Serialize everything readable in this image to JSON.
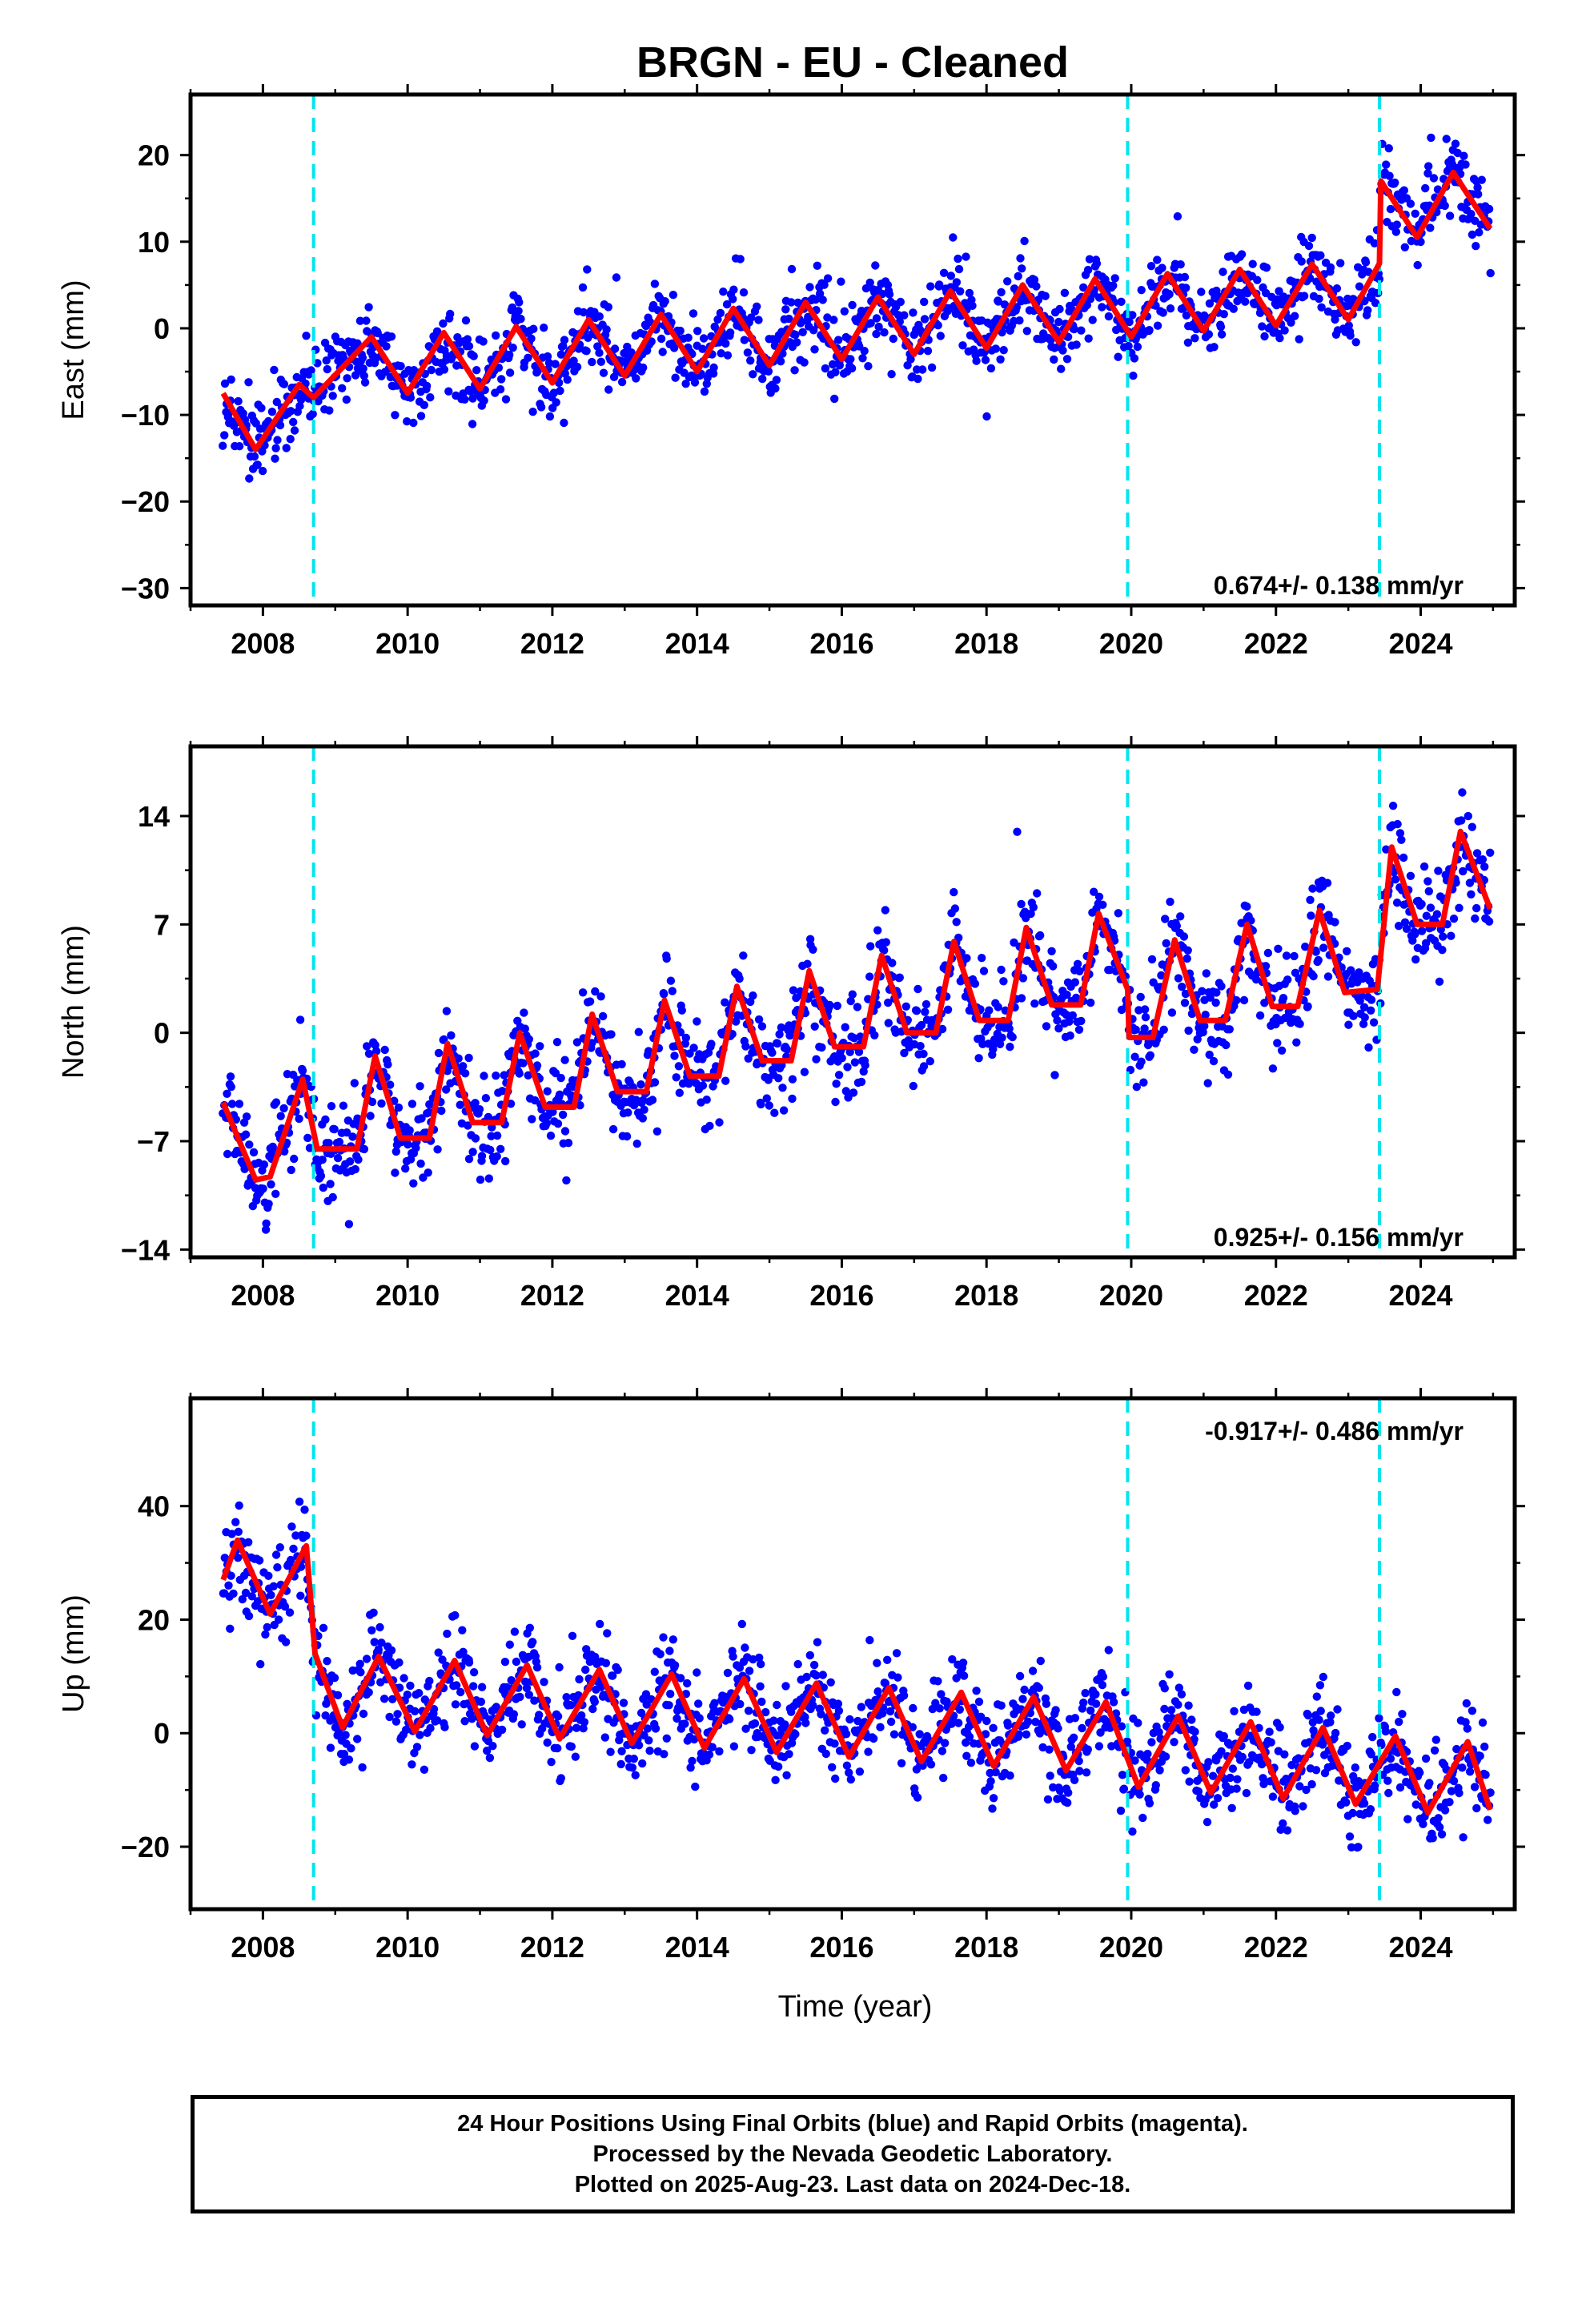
{
  "chart_data": {
    "type": "scatter",
    "title": "BRGN  - EU - Cleaned",
    "xlabel": "Time (year)",
    "xlim": [
      2007.0,
      2025.3
    ],
    "x_ticks": [
      2008,
      2010,
      2012,
      2014,
      2016,
      2018,
      2020,
      2022,
      2024
    ],
    "x_tick_labels": [
      "2008",
      "2010",
      "2012",
      "2014",
      "2016",
      "2018",
      "2020",
      "2022",
      "2024"
    ],
    "data_span": [
      2007.45,
      2024.96
    ],
    "step_epochs": [
      2008.7,
      2019.95,
      2023.43
    ],
    "colors": {
      "points": "#0000ff",
      "model": "#ff0000",
      "steps": "#00e5ee",
      "frame": "#000000"
    },
    "series": [
      {
        "name": "Final Orbits",
        "marker_color": "#0000ff"
      },
      {
        "name": "Rapid Orbits",
        "marker_color": "#ff00ff"
      }
    ],
    "panels": [
      {
        "component": "east",
        "ylabel": "East (mm)",
        "ylim": [
          -32,
          27
        ],
        "y_ticks": [
          -30,
          -20,
          -10,
          0,
          10,
          20
        ],
        "y_tick_labels": [
          "−30",
          "−20",
          "−10",
          "0",
          "10",
          "20"
        ],
        "rate": "0.674+/- 0.138 mm/yr",
        "rate_position": "bottom-right",
        "trend_rate_mm_yr": 0.674,
        "model": [
          {
            "t": 2007.45,
            "y": -7.5
          },
          {
            "t": 2007.9,
            "y": -14
          },
          {
            "t": 2008.5,
            "y": -6.5
          },
          {
            "t": 2008.7,
            "y": -8
          },
          {
            "t": 2009.5,
            "y": -1
          },
          {
            "t": 2010.0,
            "y": -7.5
          },
          {
            "t": 2010.5,
            "y": -0.5
          },
          {
            "t": 2011.0,
            "y": -7
          },
          {
            "t": 2011.5,
            "y": 0.2
          },
          {
            "t": 2012.0,
            "y": -6.3
          },
          {
            "t": 2012.5,
            "y": 1
          },
          {
            "t": 2013.0,
            "y": -5.5
          },
          {
            "t": 2013.5,
            "y": 1.6
          },
          {
            "t": 2014.0,
            "y": -5
          },
          {
            "t": 2014.5,
            "y": 2.3
          },
          {
            "t": 2015.0,
            "y": -4.3
          },
          {
            "t": 2015.5,
            "y": 3
          },
          {
            "t": 2016.0,
            "y": -3.6
          },
          {
            "t": 2016.5,
            "y": 3.6
          },
          {
            "t": 2017.0,
            "y": -3
          },
          {
            "t": 2017.5,
            "y": 4.3
          },
          {
            "t": 2018.0,
            "y": -2.3
          },
          {
            "t": 2018.5,
            "y": 5
          },
          {
            "t": 2019.0,
            "y": -1.6
          },
          {
            "t": 2019.5,
            "y": 5.7
          },
          {
            "t": 2020.0,
            "y": -1
          },
          {
            "t": 2020.5,
            "y": 6.3
          },
          {
            "t": 2021.0,
            "y": -0.3
          },
          {
            "t": 2021.5,
            "y": 6.8
          },
          {
            "t": 2022.0,
            "y": 0.3
          },
          {
            "t": 2022.5,
            "y": 7.4
          },
          {
            "t": 2023.0,
            "y": 1
          },
          {
            "t": 2023.43,
            "y": 7.5
          },
          {
            "t": 2023.45,
            "y": 17
          },
          {
            "t": 2023.95,
            "y": 10.5
          },
          {
            "t": 2024.45,
            "y": 18
          },
          {
            "t": 2024.96,
            "y": 11.5
          }
        ]
      },
      {
        "component": "north",
        "ylabel": "North (mm)",
        "ylim": [
          -14.5,
          18.5
        ],
        "y_ticks": [
          -14,
          -7,
          0,
          7,
          14
        ],
        "y_tick_labels": [
          "−14",
          "−7",
          "0",
          "7",
          "14"
        ],
        "rate": "0.925+/- 0.156 mm/yr",
        "rate_position": "bottom-right",
        "trend_rate_mm_yr": 0.925,
        "model": [
          {
            "t": 2007.45,
            "y": -4.5
          },
          {
            "t": 2007.9,
            "y": -9.5
          },
          {
            "t": 2008.1,
            "y": -9.3
          },
          {
            "t": 2008.55,
            "y": -3
          },
          {
            "t": 2008.75,
            "y": -7.5
          },
          {
            "t": 2009.3,
            "y": -7.5
          },
          {
            "t": 2009.55,
            "y": -1.5
          },
          {
            "t": 2009.9,
            "y": -6.8
          },
          {
            "t": 2010.3,
            "y": -6.8
          },
          {
            "t": 2010.55,
            "y": -0.7
          },
          {
            "t": 2010.9,
            "y": -5.8
          },
          {
            "t": 2011.3,
            "y": -5.8
          },
          {
            "t": 2011.55,
            "y": 0
          },
          {
            "t": 2011.9,
            "y": -4.8
          },
          {
            "t": 2012.3,
            "y": -4.8
          },
          {
            "t": 2012.55,
            "y": 1.2
          },
          {
            "t": 2012.9,
            "y": -3.8
          },
          {
            "t": 2013.3,
            "y": -3.8
          },
          {
            "t": 2013.55,
            "y": 2.1
          },
          {
            "t": 2013.9,
            "y": -2.8
          },
          {
            "t": 2014.3,
            "y": -2.8
          },
          {
            "t": 2014.55,
            "y": 3
          },
          {
            "t": 2014.9,
            "y": -1.8
          },
          {
            "t": 2015.3,
            "y": -1.8
          },
          {
            "t": 2015.55,
            "y": 4
          },
          {
            "t": 2015.9,
            "y": -0.9
          },
          {
            "t": 2016.3,
            "y": -0.9
          },
          {
            "t": 2016.55,
            "y": 5
          },
          {
            "t": 2016.9,
            "y": 0
          },
          {
            "t": 2017.3,
            "y": 0
          },
          {
            "t": 2017.55,
            "y": 5.9
          },
          {
            "t": 2017.9,
            "y": 0.8
          },
          {
            "t": 2018.3,
            "y": 0.8
          },
          {
            "t": 2018.55,
            "y": 6.8
          },
          {
            "t": 2018.9,
            "y": 1.8
          },
          {
            "t": 2019.3,
            "y": 1.8
          },
          {
            "t": 2019.55,
            "y": 7.7
          },
          {
            "t": 2019.95,
            "y": 2.8
          },
          {
            "t": 2019.97,
            "y": -0.3
          },
          {
            "t": 2020.3,
            "y": -0.3
          },
          {
            "t": 2020.6,
            "y": 6
          },
          {
            "t": 2020.95,
            "y": 0.8
          },
          {
            "t": 2021.3,
            "y": 0.8
          },
          {
            "t": 2021.6,
            "y": 7
          },
          {
            "t": 2021.95,
            "y": 1.7
          },
          {
            "t": 2022.3,
            "y": 1.7
          },
          {
            "t": 2022.6,
            "y": 7.9
          },
          {
            "t": 2022.95,
            "y": 2.6
          },
          {
            "t": 2023.4,
            "y": 2.8
          },
          {
            "t": 2023.6,
            "y": 12
          },
          {
            "t": 2023.95,
            "y": 7
          },
          {
            "t": 2024.3,
            "y": 7
          },
          {
            "t": 2024.55,
            "y": 13
          },
          {
            "t": 2024.96,
            "y": 8
          }
        ]
      },
      {
        "component": "up",
        "ylabel": "Up (mm)",
        "ylim": [
          -31,
          59
        ],
        "y_ticks": [
          -20,
          0,
          20,
          40
        ],
        "y_tick_labels": [
          "−20",
          "0",
          "20",
          "40"
        ],
        "rate": "-0.917+/- 0.486 mm/yr",
        "rate_position": "top-right",
        "trend_rate_mm_yr": -0.917,
        "model": [
          {
            "t": 2007.45,
            "y": 27
          },
          {
            "t": 2007.65,
            "y": 34
          },
          {
            "t": 2008.1,
            "y": 21
          },
          {
            "t": 2008.6,
            "y": 33
          },
          {
            "t": 2008.72,
            "y": 14
          },
          {
            "t": 2009.1,
            "y": 1
          },
          {
            "t": 2009.6,
            "y": 13.5
          },
          {
            "t": 2010.1,
            "y": 0.3
          },
          {
            "t": 2010.65,
            "y": 12.8
          },
          {
            "t": 2011.1,
            "y": -0.4
          },
          {
            "t": 2011.65,
            "y": 12
          },
          {
            "t": 2012.1,
            "y": -1
          },
          {
            "t": 2012.65,
            "y": 11.2
          },
          {
            "t": 2013.1,
            "y": -1.8
          },
          {
            "t": 2013.65,
            "y": 10.4
          },
          {
            "t": 2014.1,
            "y": -2.6
          },
          {
            "t": 2014.65,
            "y": 9.6
          },
          {
            "t": 2015.1,
            "y": -3.4
          },
          {
            "t": 2015.65,
            "y": 8.8
          },
          {
            "t": 2016.1,
            "y": -4.2
          },
          {
            "t": 2016.65,
            "y": 8
          },
          {
            "t": 2017.1,
            "y": -5
          },
          {
            "t": 2017.65,
            "y": 7.2
          },
          {
            "t": 2018.1,
            "y": -5.8
          },
          {
            "t": 2018.65,
            "y": 6.4
          },
          {
            "t": 2019.1,
            "y": -6.6
          },
          {
            "t": 2019.65,
            "y": 5.5
          },
          {
            "t": 2020.1,
            "y": -9.5
          },
          {
            "t": 2020.65,
            "y": 3
          },
          {
            "t": 2021.1,
            "y": -10.5
          },
          {
            "t": 2021.65,
            "y": 2
          },
          {
            "t": 2022.1,
            "y": -11.5
          },
          {
            "t": 2022.65,
            "y": 1
          },
          {
            "t": 2023.1,
            "y": -12.5
          },
          {
            "t": 2023.65,
            "y": -0.5
          },
          {
            "t": 2024.1,
            "y": -14
          },
          {
            "t": 2024.65,
            "y": -1.5
          },
          {
            "t": 2024.96,
            "y": -13.5
          }
        ]
      }
    ]
  },
  "caption": {
    "line1": "24 Hour Positions Using Final Orbits (blue) and Rapid Orbits (magenta).",
    "line2": "Processed by the Nevada Geodetic Laboratory.",
    "line3": "Plotted on 2025-Aug-23. Last data on 2024-Dec-18."
  }
}
